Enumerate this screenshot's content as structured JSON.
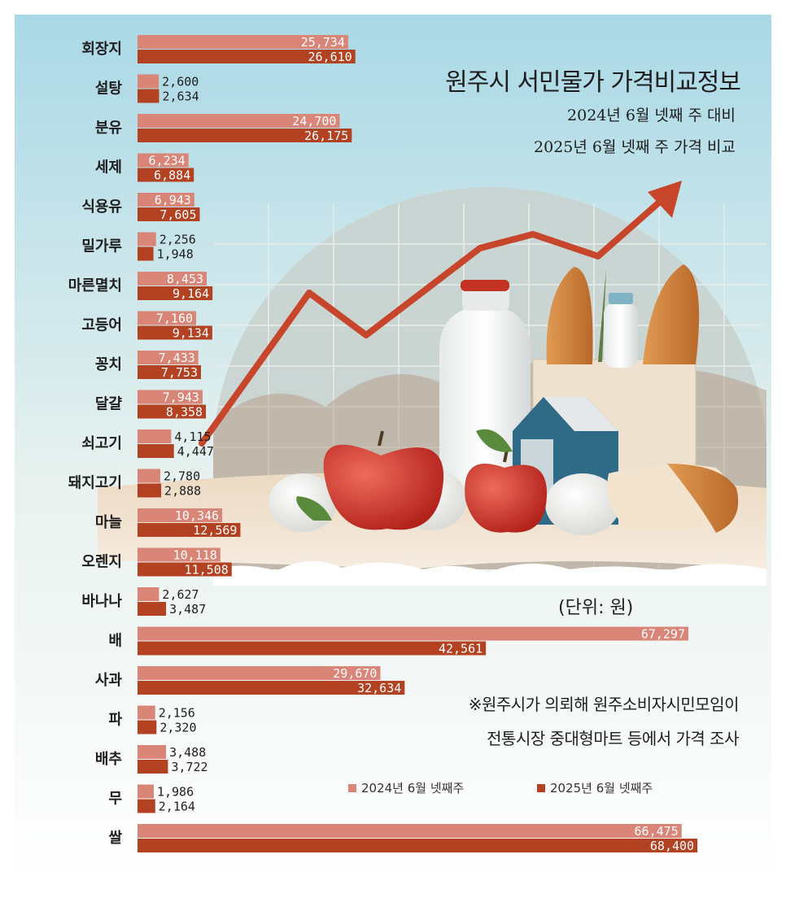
{
  "title": "원주시 서민물가 가격비교정보",
  "subtitle_1": "2024년 6월 넷째 주 대비",
  "subtitle_2": "2025년 6월 넷째 주 가격 비교",
  "unit_note": "(단위: 원)",
  "source_note_1": "※원주시가 의뢰해 원주소비자시민모임이",
  "source_note_2": "전통시장 중대형마트 등에서 가격 조사",
  "colors": {
    "series_2024": "#d98577",
    "series_2025": "#b34222",
    "bg_top": "#bfe3ec",
    "arrow": "#c6452b"
  },
  "chart_data": {
    "type": "bar",
    "orientation": "horizontal",
    "categories": [
      "회장지",
      "설탕",
      "분유",
      "세제",
      "식용유",
      "밀가루",
      "마른멸치",
      "고등어",
      "꽁치",
      "달걀",
      "쇠고기",
      "돼지고기",
      "마늘",
      "오렌지",
      "바나나",
      "배",
      "사과",
      "파",
      "배추",
      "무",
      "쌀"
    ],
    "series": [
      {
        "name": "2024년 6월 넷째주",
        "values": [
          25734,
          2600,
          24700,
          6234,
          6943,
          2256,
          8453,
          7160,
          7433,
          7943,
          4115,
          2780,
          10346,
          10118,
          2627,
          67297,
          29670,
          2156,
          3488,
          1986,
          66475
        ]
      },
      {
        "name": "2025년 6월 넷째주",
        "values": [
          26610,
          2634,
          26175,
          6884,
          7605,
          1948,
          9164,
          9134,
          7753,
          8358,
          4447,
          2888,
          12569,
          11508,
          3487,
          42561,
          32634,
          2320,
          3722,
          2164,
          68400
        ]
      }
    ],
    "value_labels_2024": [
      "25,734",
      "2,600",
      "24,700",
      "6,234",
      "6,943",
      "2,256",
      "8,453",
      "7,160",
      "7,433",
      "7,943",
      "4,115",
      "2,780",
      "10,346",
      "10,118",
      "2,627",
      "67,297",
      "29,670",
      "2,156",
      "3,488",
      "1,986",
      "66,475"
    ],
    "value_labels_2025": [
      "26,610",
      "2,634",
      "26,175",
      "6,884",
      "7,605",
      "1,948",
      "9,164",
      "9,134",
      "7,753",
      "8,358",
      "4,447",
      "2,888",
      "12,569",
      "11,508",
      "3,487",
      "42,561",
      "32,634",
      "2,320",
      "3,722",
      "2,164",
      "68,400"
    ],
    "legend_position": "bottom-right",
    "xlim": [
      0,
      70000
    ]
  }
}
